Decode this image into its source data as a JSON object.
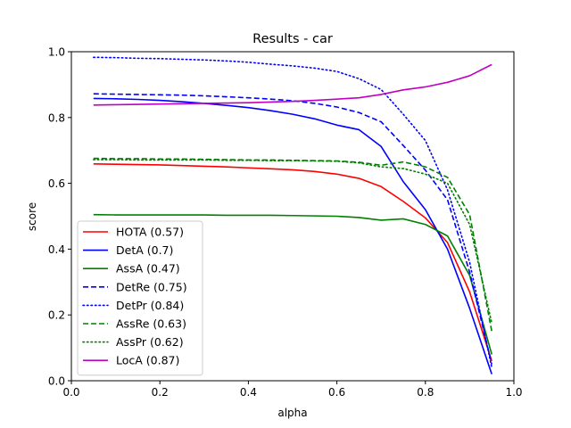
{
  "chart_data": {
    "type": "line",
    "title": "Results - car",
    "xlabel": "alpha",
    "ylabel": "score",
    "xlim": [
      0.0,
      1.0
    ],
    "ylim": [
      0.0,
      1.0
    ],
    "xticks": [
      "0.0",
      "0.2",
      "0.4",
      "0.6",
      "0.8",
      "1.0"
    ],
    "yticks": [
      "0.0",
      "0.2",
      "0.4",
      "0.6",
      "0.8",
      "1.0"
    ],
    "grid": false,
    "legend_position": "lower-left",
    "x": [
      0.05,
      0.1,
      0.15,
      0.2,
      0.25,
      0.3,
      0.35,
      0.4,
      0.45,
      0.5,
      0.55,
      0.6,
      0.65,
      0.7,
      0.75,
      0.8,
      0.85,
      0.9,
      0.95
    ],
    "series": [
      {
        "name": "HOTA (0.57)",
        "color": "#ff0000",
        "dash": "solid",
        "values": [
          0.659,
          0.658,
          0.657,
          0.656,
          0.654,
          0.652,
          0.65,
          0.647,
          0.644,
          0.641,
          0.636,
          0.628,
          0.615,
          0.59,
          0.545,
          0.495,
          0.42,
          0.27,
          0.06
        ]
      },
      {
        "name": "DetA (0.7)",
        "color": "#0000ff",
        "dash": "solid",
        "values": [
          0.858,
          0.857,
          0.855,
          0.852,
          0.848,
          0.843,
          0.837,
          0.83,
          0.821,
          0.81,
          0.796,
          0.777,
          0.763,
          0.712,
          0.605,
          0.52,
          0.4,
          0.22,
          0.02
        ]
      },
      {
        "name": "AssA (0.47)",
        "color": "#008000",
        "dash": "solid",
        "values": [
          0.505,
          0.504,
          0.504,
          0.504,
          0.504,
          0.504,
          0.503,
          0.503,
          0.503,
          0.502,
          0.501,
          0.5,
          0.496,
          0.488,
          0.492,
          0.475,
          0.44,
          0.32,
          0.08
        ]
      },
      {
        "name": "DetRe (0.75)",
        "color": "#0000ff",
        "dash": "dashed",
        "values": [
          0.872,
          0.871,
          0.87,
          0.869,
          0.868,
          0.866,
          0.863,
          0.86,
          0.856,
          0.851,
          0.843,
          0.832,
          0.815,
          0.787,
          0.715,
          0.64,
          0.55,
          0.33,
          0.05
        ]
      },
      {
        "name": "DetPr (0.84)",
        "color": "#0000ff",
        "dash": "dotted",
        "values": [
          0.983,
          0.982,
          0.98,
          0.979,
          0.977,
          0.975,
          0.972,
          0.968,
          0.962,
          0.957,
          0.95,
          0.94,
          0.918,
          0.885,
          0.81,
          0.73,
          0.58,
          0.36,
          0.04
        ]
      },
      {
        "name": "AssRe (0.63)",
        "color": "#008000",
        "dash": "dashed",
        "values": [
          0.676,
          0.675,
          0.675,
          0.674,
          0.674,
          0.673,
          0.672,
          0.671,
          0.671,
          0.67,
          0.669,
          0.668,
          0.664,
          0.655,
          0.665,
          0.65,
          0.618,
          0.505,
          0.15
        ]
      },
      {
        "name": "AssPr (0.62)",
        "color": "#008000",
        "dash": "dotted",
        "values": [
          0.672,
          0.672,
          0.671,
          0.671,
          0.671,
          0.671,
          0.67,
          0.67,
          0.669,
          0.669,
          0.668,
          0.667,
          0.662,
          0.65,
          0.645,
          0.628,
          0.6,
          0.475,
          0.175
        ]
      },
      {
        "name": "LocA (0.87)",
        "color": "#bf00bf",
        "dash": "solid",
        "values": [
          0.838,
          0.839,
          0.84,
          0.841,
          0.842,
          0.843,
          0.844,
          0.845,
          0.847,
          0.849,
          0.852,
          0.856,
          0.86,
          0.87,
          0.884,
          0.893,
          0.907,
          0.927,
          0.961
        ]
      }
    ]
  }
}
